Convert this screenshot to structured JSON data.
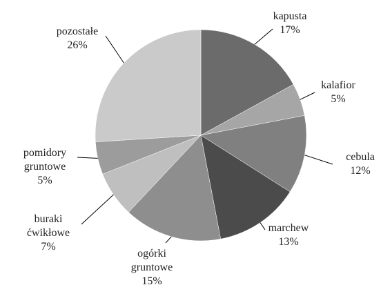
{
  "chart_data": {
    "type": "pie",
    "categories": [
      "kapusta",
      "kalafior",
      "cebula",
      "marchew",
      "ogórki gruntowe",
      "buraki ćwikłowe",
      "pomidory gruntowe",
      "pozostałe"
    ],
    "values": [
      17,
      5,
      12,
      13,
      15,
      7,
      5,
      26
    ],
    "value_labels": [
      "17%",
      "5%",
      "12%",
      "13%",
      "15%",
      "7%",
      "5%",
      "26%"
    ],
    "colors": [
      "#6b6b6b",
      "#a6a6a6",
      "#808080",
      "#4b4b4b",
      "#8e8e8e",
      "#bfbfbf",
      "#9c9c9c",
      "#cacaca"
    ]
  }
}
